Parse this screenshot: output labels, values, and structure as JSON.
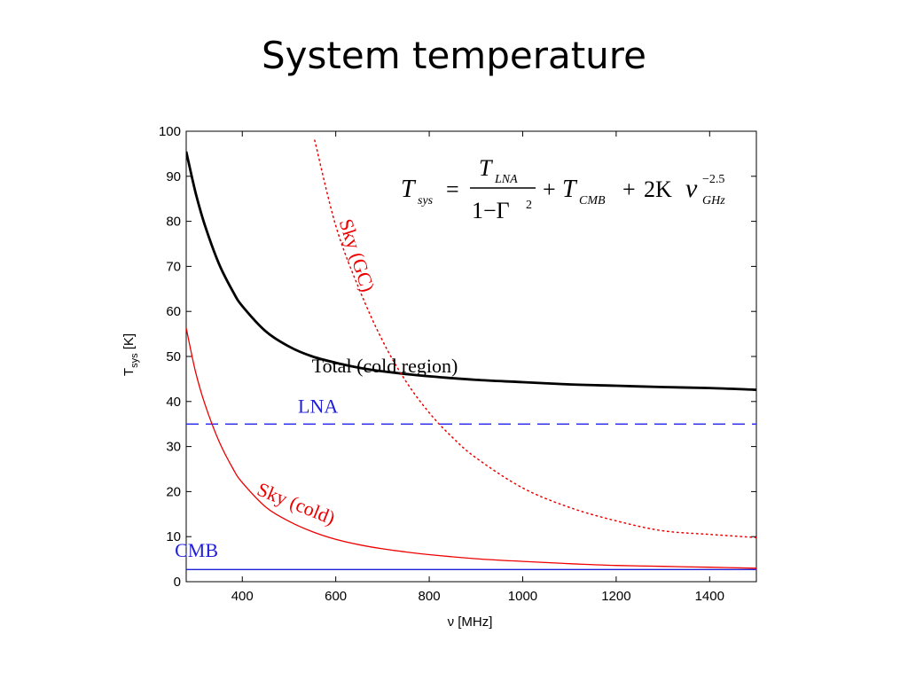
{
  "slide": {
    "title": "System temperature"
  },
  "chart_data": {
    "type": "line",
    "xlabel": "ν [MHz]",
    "ylabel_main": "T",
    "ylabel_sub": "sys",
    "ylabel_unit": "[K]",
    "xlim": [
      280,
      1500
    ],
    "ylim": [
      0,
      100
    ],
    "xticks": [
      400,
      600,
      800,
      1000,
      1200,
      1400
    ],
    "yticks": [
      0,
      10,
      20,
      30,
      40,
      50,
      60,
      70,
      80,
      90,
      100
    ],
    "grid": false,
    "formula": {
      "lhs": "T",
      "lhs_sub": "sys",
      "eq": "=",
      "num": "T",
      "num_sub": "LNA",
      "den": "1−Γ",
      "den_sup": "2",
      "plus1": "+",
      "term2": "T",
      "term2_sub": "CMB",
      "plus2": "+",
      "term3": "2K",
      "nu": "ν",
      "nu_sub": "GHz",
      "nu_sup": "−2.5"
    },
    "series": [
      {
        "name": "Total (cold region)",
        "color": "#000000",
        "style": "solid",
        "width": 2.8,
        "x": [
          280,
          300,
          320,
          350,
          380,
          400,
          450,
          500,
          550,
          600,
          650,
          700,
          750,
          800,
          900,
          1000,
          1100,
          1200,
          1300,
          1400,
          1500
        ],
        "y": [
          95.5,
          86.4,
          79.1,
          70.6,
          64.4,
          61.2,
          55.6,
          52.2,
          50.0,
          48.6,
          47.5,
          46.7,
          46.1,
          45.6,
          44.8,
          44.3,
          43.8,
          43.5,
          43.2,
          43.0,
          42.6
        ]
      },
      {
        "name": "LNA",
        "color": "#3333ee",
        "style": "dashed",
        "width": 1.5,
        "x": [
          280,
          1500
        ],
        "y": [
          35,
          35
        ]
      },
      {
        "name": "Sky (GC)",
        "color": "#ee0000",
        "style": "dotted",
        "width": 1.5,
        "x": [
          555,
          600,
          650,
          700,
          750,
          800,
          850,
          900,
          1000,
          1100,
          1200,
          1300,
          1400,
          1500
        ],
        "y": [
          98.0,
          79.0,
          65.0,
          53.5,
          44.5,
          37.5,
          32.0,
          27.5,
          20.8,
          16.5,
          13.5,
          11.3,
          10.5,
          9.8
        ]
      },
      {
        "name": "Sky (cold)",
        "color": "#ee0000",
        "style": "solid",
        "width": 1.3,
        "x": [
          280,
          300,
          320,
          350,
          380,
          400,
          450,
          500,
          550,
          600,
          650,
          700,
          750,
          800,
          900,
          1000,
          1100,
          1200,
          1300,
          1400,
          1500
        ],
        "y": [
          56.3,
          46.6,
          39.4,
          31.2,
          25.1,
          22.0,
          16.6,
          13.4,
          11.1,
          9.4,
          8.2,
          7.3,
          6.6,
          6.0,
          5.1,
          4.5,
          4.0,
          3.6,
          3.4,
          3.2,
          3.0
        ]
      },
      {
        "name": "CMB",
        "color": "#1f1fd6",
        "style": "solid",
        "width": 1.3,
        "x": [
          280,
          1500
        ],
        "y": [
          2.7,
          2.7
        ]
      }
    ],
    "annotations": [
      {
        "text": "Total (cold region)",
        "color": "#000000",
        "x": 705,
        "y": 46.5,
        "rotate": 0
      },
      {
        "text": "LNA",
        "color": "#1f1fd6",
        "x": 562,
        "y": 37.5,
        "rotate": 0
      },
      {
        "text": "Sky (GC)",
        "color": "#ee0000",
        "x": 632,
        "y": 72,
        "rotate": 72
      },
      {
        "text": "Sky (cold)",
        "color": "#ee0000",
        "x": 510,
        "y": 16,
        "rotate": 22
      },
      {
        "text": "CMB",
        "color": "#1f1fd6",
        "x": 302,
        "y": 5.5,
        "rotate": 0
      }
    ]
  }
}
